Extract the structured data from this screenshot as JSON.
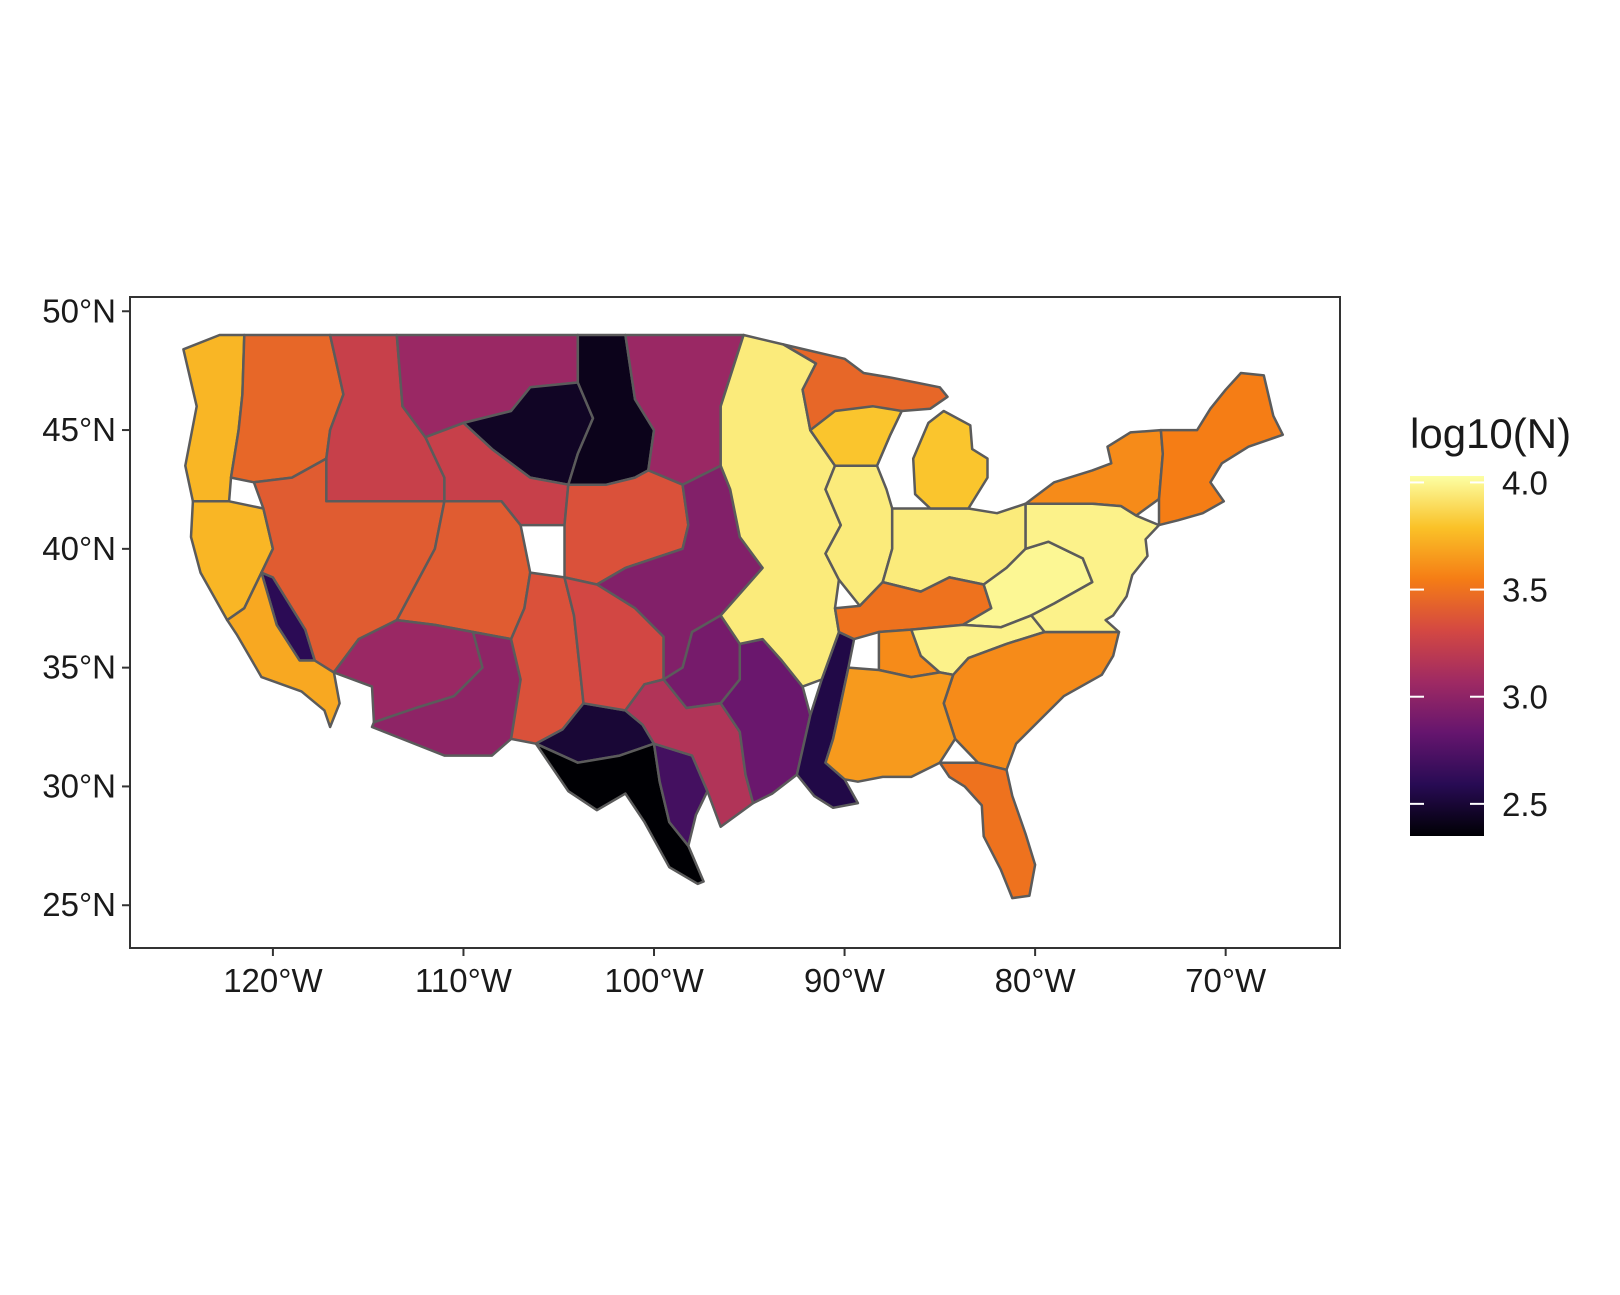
{
  "chart_data": {
    "type": "choropleth",
    "title": "",
    "legend": {
      "title": "log10(N)",
      "labels": [
        "4.0",
        "3.5",
        "3.0",
        "2.5"
      ],
      "values": [
        4.0,
        3.5,
        3.0,
        2.5
      ],
      "range": [
        2.35,
        4.03
      ],
      "palette": [
        "#000004",
        "#280b54",
        "#65156e",
        "#9f2a63",
        "#d44842",
        "#f57d15",
        "#fac228",
        "#fcffa4"
      ],
      "placement": "right"
    },
    "x_axis": {
      "labels": [
        "120°W",
        "110°W",
        "100°W",
        "90°W",
        "80°W",
        "70°W"
      ],
      "values": [
        -120,
        -110,
        -100,
        -90,
        -80,
        -70
      ],
      "range": [
        -127.5,
        -64
      ]
    },
    "y_axis": {
      "labels": [
        "25°N",
        "30°N",
        "35°N",
        "40°N",
        "45°N",
        "50°N"
      ],
      "values": [
        25,
        30,
        35,
        40,
        45,
        50
      ],
      "range": [
        23.2,
        50.6
      ]
    },
    "region_values": {
      "pacific_northwest_coast": 3.75,
      "columbia_interior": 3.45,
      "snake_river": 3.25,
      "upper_missouri": 3.05,
      "yellowstone": 2.45,
      "little_missouri": 2.42,
      "red_river_north": 3.05,
      "northern_california": 3.75,
      "central_valley_east": 2.6,
      "southern_california": 3.7,
      "great_basin": 3.4,
      "upper_colorado": 3.4,
      "green_river": 3.25,
      "lower_colorado": 3.05,
      "gila": 3.0,
      "upper_rio_grande": 3.35,
      "pecos": 2.5,
      "lower_rio_grande": 2.35,
      "nueces": 2.7,
      "south_platte": 3.35,
      "platte_kansas": 2.95,
      "arkansas_red": 3.3,
      "red_river": 2.9,
      "brazos": 3.15,
      "sabine_neches": 2.85,
      "lower_mississippi": 2.55,
      "upper_mississippi": 3.95,
      "illinois": 3.95,
      "ohio_upper": 3.95,
      "ohio_lower": 3.5,
      "tennessee": 3.6,
      "appalachian": 4.0,
      "cumberland": 3.98,
      "southeast_atlantic": 3.6,
      "alabama_mobile": 3.65,
      "florida": 3.5,
      "great_lakes_west": 3.45,
      "wisconsin": 3.8,
      "michigan": 3.8,
      "new_york": 3.6,
      "new_england": 3.55,
      "mid_atlantic": 3.98
    }
  }
}
